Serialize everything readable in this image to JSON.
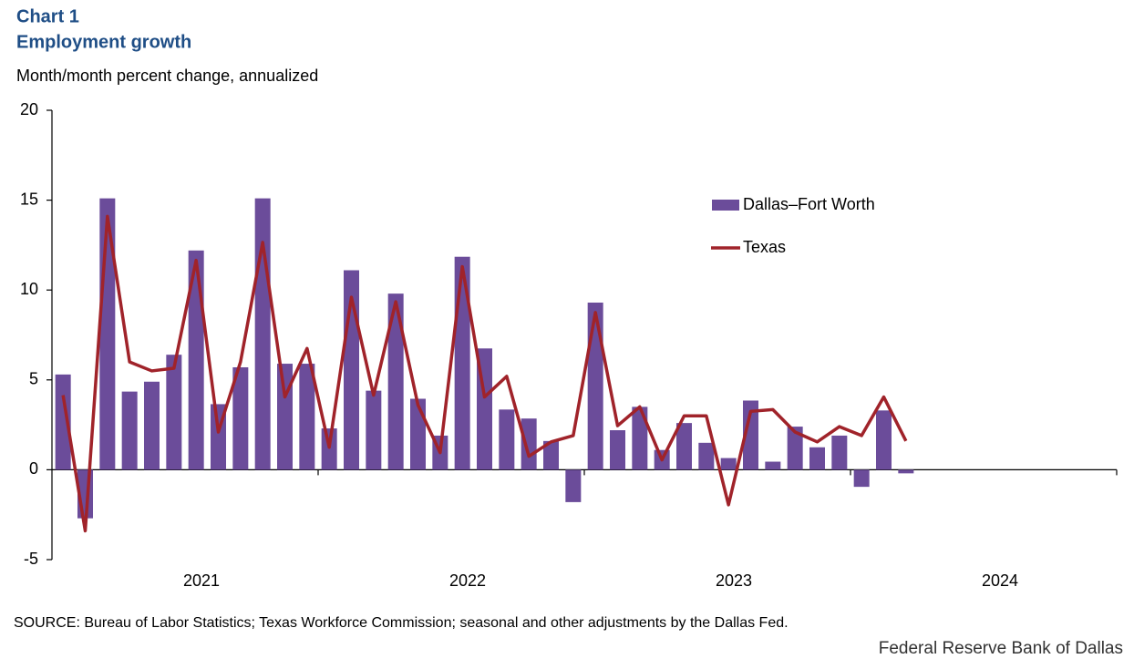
{
  "chart_data": {
    "type": "bar_line",
    "title": "Chart 1",
    "subtitle": "Employment growth",
    "y_label": "Month/month percent change, annualized",
    "source": "SOURCE: Bureau of Labor Statistics; Texas Workforce Commission; seasonal and other adjustments by the Dallas Fed.",
    "credit": "Federal Reserve Bank of Dallas",
    "year_labels": [
      "2021",
      "2022",
      "2023",
      "2024"
    ],
    "ylim": [
      -5,
      20
    ],
    "yticks": [
      -5,
      0,
      5,
      10,
      15,
      20
    ],
    "series": [
      {
        "name": "Dallas–Fort Worth",
        "type": "bar",
        "color": "#6b4c9a",
        "values": [
          5.3,
          -2.7,
          15.1,
          4.35,
          4.9,
          6.4,
          12.2,
          3.65,
          5.7,
          15.1,
          5.9,
          5.9,
          2.3,
          11.1,
          4.4,
          9.8,
          3.95,
          1.9,
          11.85,
          6.75,
          3.35,
          2.85,
          1.6,
          -1.8,
          9.3,
          2.2,
          3.5,
          1.1,
          2.6,
          1.5,
          0.65,
          3.85,
          0.45,
          2.4,
          1.25,
          1.9,
          -0.95,
          3.3,
          -0.2
        ]
      },
      {
        "name": "Texas",
        "type": "line",
        "color": "#a0232a",
        "values": [
          4.15,
          -3.4,
          14.1,
          6.0,
          5.5,
          5.65,
          11.65,
          2.1,
          6.0,
          12.65,
          4.05,
          6.75,
          1.25,
          9.6,
          4.15,
          9.35,
          3.6,
          0.95,
          11.3,
          4.05,
          5.2,
          0.75,
          1.55,
          1.9,
          8.75,
          2.45,
          3.5,
          0.55,
          3.0,
          3.0,
          -1.95,
          3.25,
          3.35,
          2.1,
          1.55,
          2.4,
          1.9,
          4.05,
          1.6
        ]
      }
    ]
  }
}
